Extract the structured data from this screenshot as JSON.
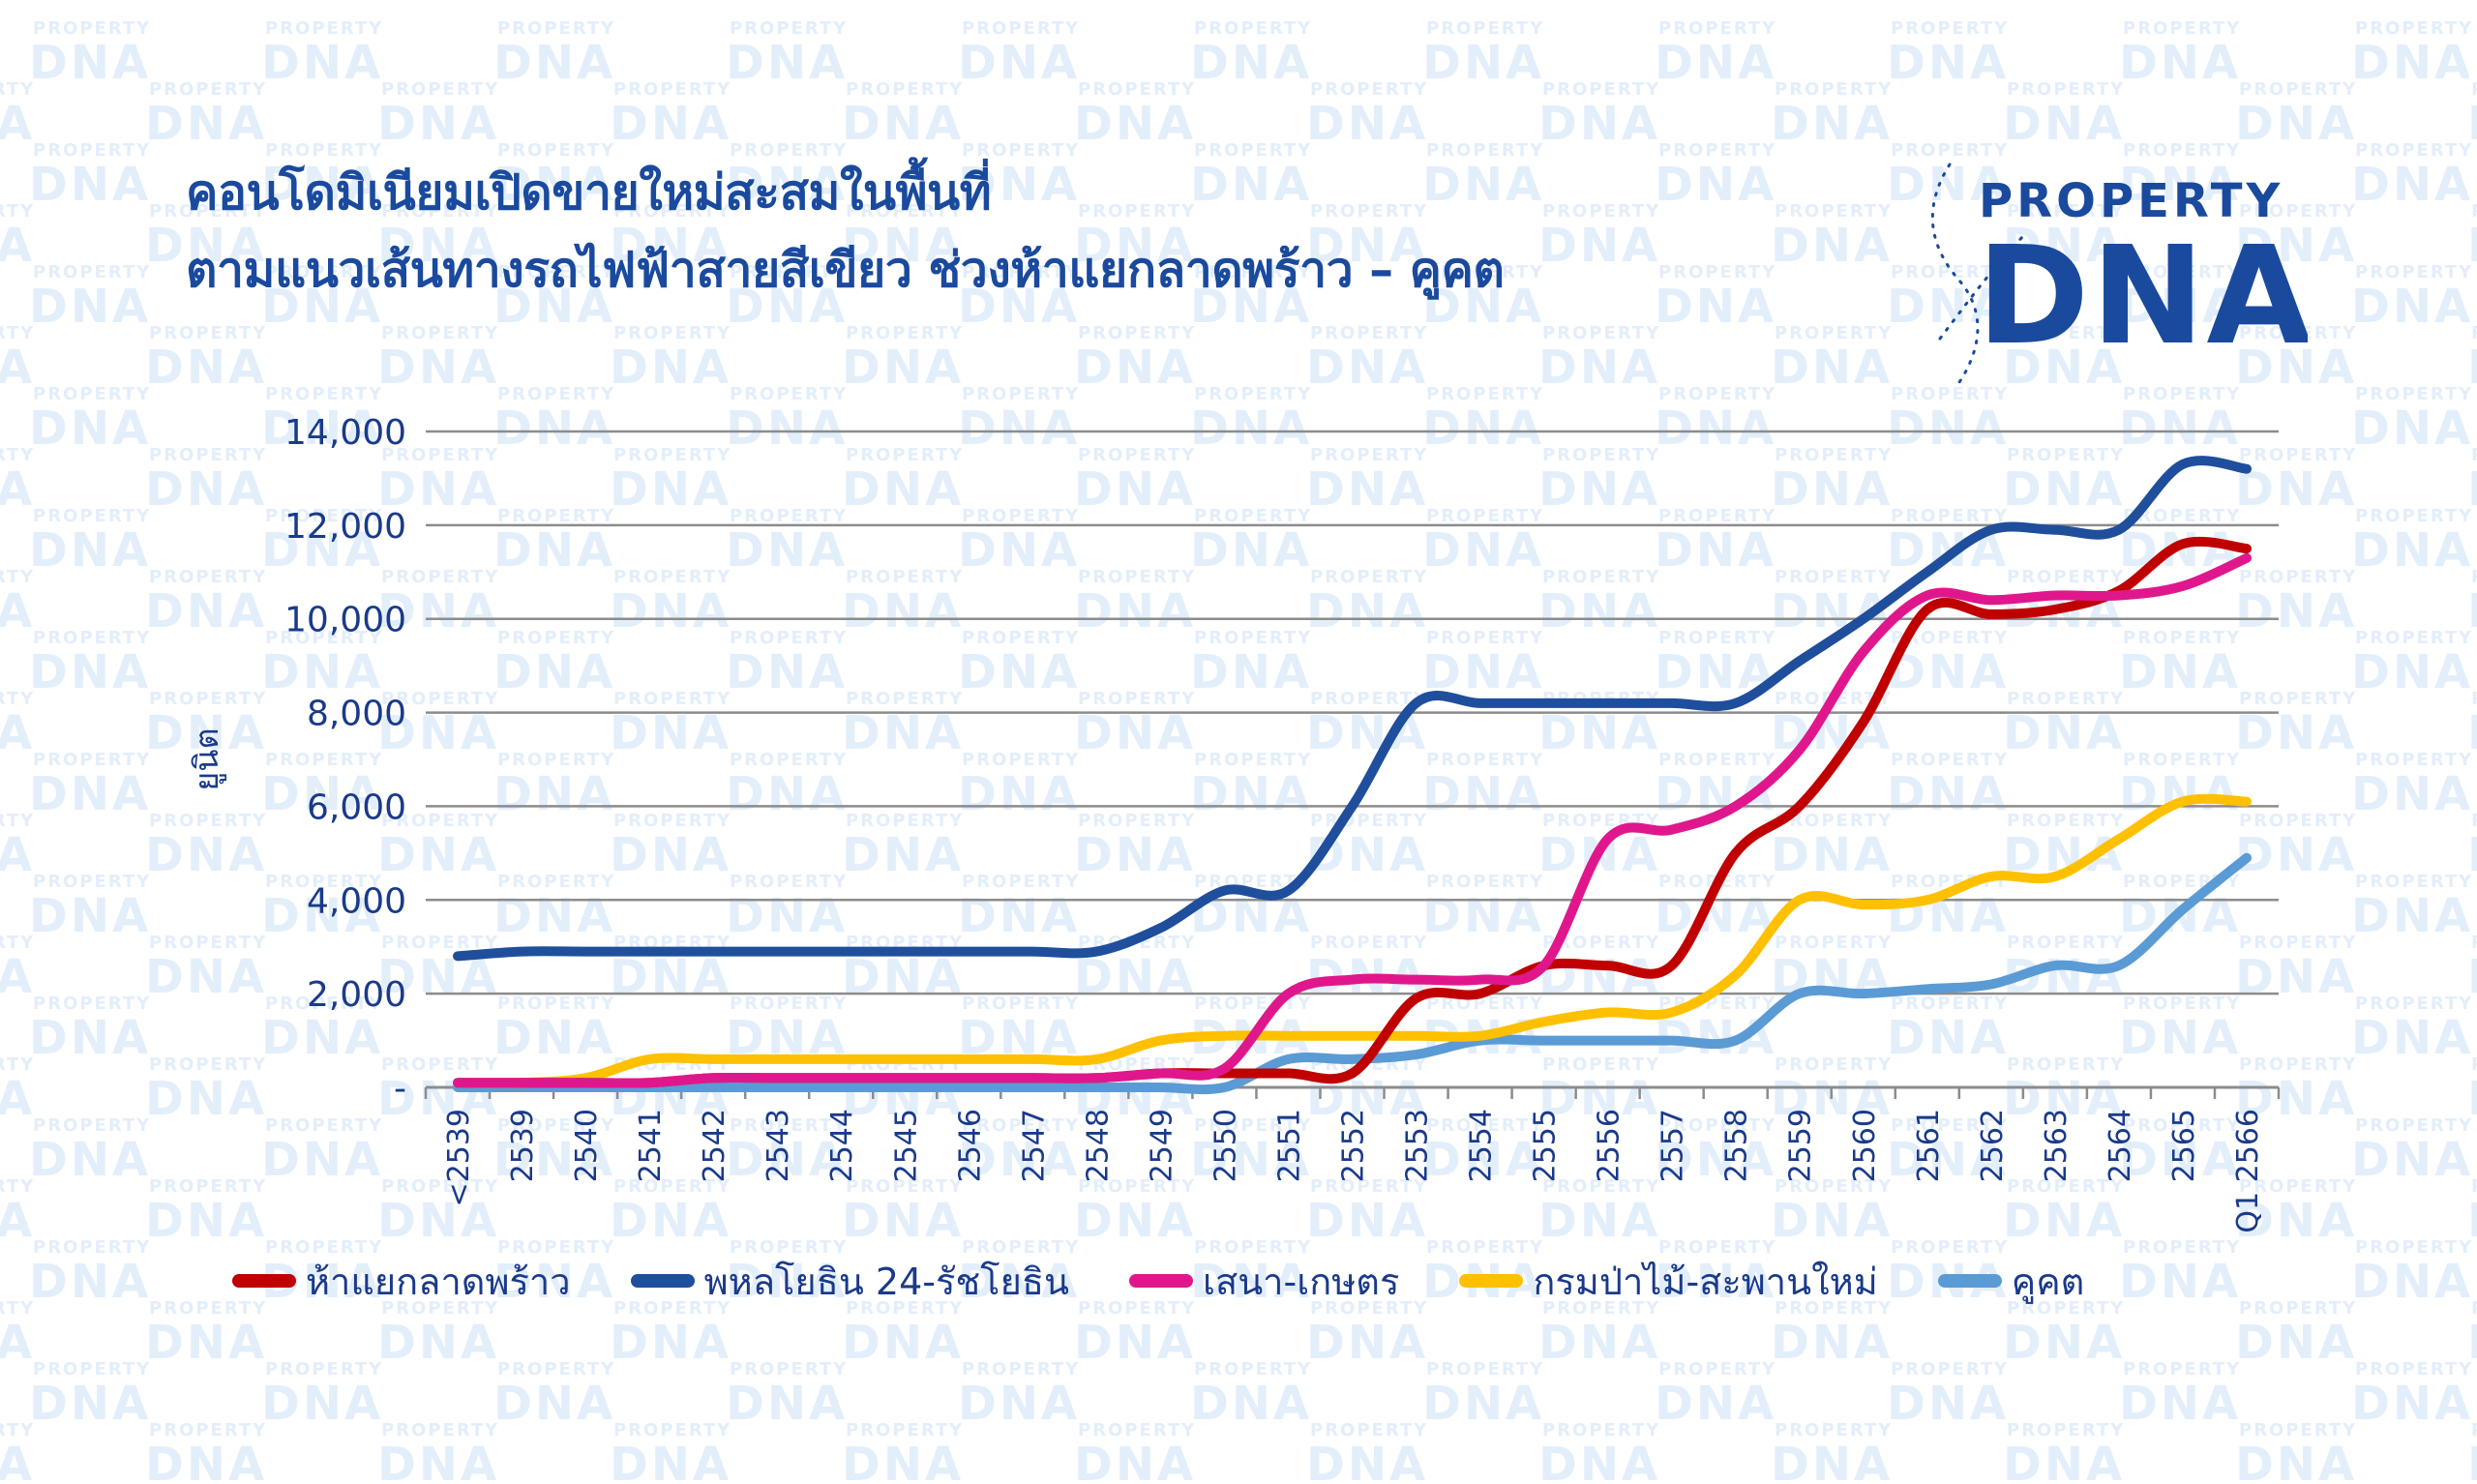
{
  "title": {
    "line1": "คอนโดมิเนียมเปิดขายใหม่สะสมในพื้นที่",
    "line2": "ตามแนวเส้นทางรถไฟฟ้าสายสีเขียว ช่วงห้าแยกลาดพร้าว – คูคต"
  },
  "logo": {
    "line1": "PROPERTY",
    "line2": "DNA",
    "color": "#1a4a9e"
  },
  "watermark": {
    "line1": "PROPERTY",
    "line2": "DNA",
    "color": "#e3eefb"
  },
  "chart_data": {
    "type": "line",
    "title": "คอนโดมิเนียมเปิดขายใหม่สะสมในพื้นที่ ตามแนวเส้นทางรถไฟฟ้าสายสีเขียว ช่วงห้าแยกลาดพร้าว – คูคต",
    "xlabel": "",
    "ylabel": "ยูนิต",
    "ylim": [
      0,
      14000
    ],
    "yticks": [
      0,
      2000,
      4000,
      6000,
      8000,
      10000,
      12000,
      14000
    ],
    "ytick_labels": [
      "-",
      "2,000",
      "4,000",
      "6,000",
      "8,000",
      "10,000",
      "12,000",
      "14,000"
    ],
    "grid": true,
    "legend_position": "bottom",
    "categories": [
      "<2539",
      "2539",
      "2540",
      "2541",
      "2542",
      "2543",
      "2544",
      "2545",
      "2546",
      "2547",
      "2548",
      "2549",
      "2550",
      "2551",
      "2552",
      "2553",
      "2554",
      "2555",
      "2556",
      "2557",
      "2558",
      "2559",
      "2560",
      "2561",
      "2562",
      "2563",
      "2564",
      "2565",
      "Q1 2566"
    ],
    "series": [
      {
        "name": "ห้าแยกลาดพร้าว",
        "color": "#c00000",
        "values": [
          100,
          100,
          100,
          100,
          200,
          200,
          200,
          200,
          200,
          200,
          200,
          300,
          300,
          300,
          300,
          1900,
          2000,
          2600,
          2600,
          2600,
          5000,
          6000,
          7800,
          10200,
          10100,
          10200,
          10600,
          11600,
          11500
        ]
      },
      {
        "name": "พหลโยธิน 24-รัชโยธิน",
        "color": "#1f4e9c",
        "values": [
          2800,
          2900,
          2900,
          2900,
          2900,
          2900,
          2900,
          2900,
          2900,
          2900,
          2900,
          3400,
          4200,
          4200,
          6000,
          8200,
          8200,
          8200,
          8200,
          8200,
          8200,
          9100,
          10000,
          11000,
          11900,
          11900,
          11900,
          13300,
          13200
        ]
      },
      {
        "name": "เสนา-เกษตร",
        "color": "#e0178c",
        "values": [
          100,
          100,
          100,
          100,
          200,
          200,
          200,
          200,
          200,
          200,
          200,
          300,
          400,
          2000,
          2300,
          2300,
          2300,
          2600,
          5300,
          5500,
          6000,
          7200,
          9300,
          10500,
          10400,
          10500,
          10500,
          10700,
          11300
        ]
      },
      {
        "name": "กรมป่าไม้-สะพานใหม่",
        "color": "#ffc000",
        "values": [
          100,
          100,
          200,
          600,
          600,
          600,
          600,
          600,
          600,
          600,
          600,
          1000,
          1100,
          1100,
          1100,
          1100,
          1100,
          1400,
          1600,
          1600,
          2400,
          4000,
          3900,
          4000,
          4500,
          4500,
          5300,
          6100,
          6100
        ]
      },
      {
        "name": "คูคต",
        "color": "#5b9bd5",
        "values": [
          0,
          0,
          0,
          0,
          0,
          0,
          0,
          0,
          0,
          0,
          0,
          0,
          0,
          600,
          600,
          700,
          1000,
          1000,
          1000,
          1000,
          1000,
          2000,
          2000,
          2100,
          2200,
          2600,
          2600,
          3800,
          4900
        ]
      }
    ]
  }
}
